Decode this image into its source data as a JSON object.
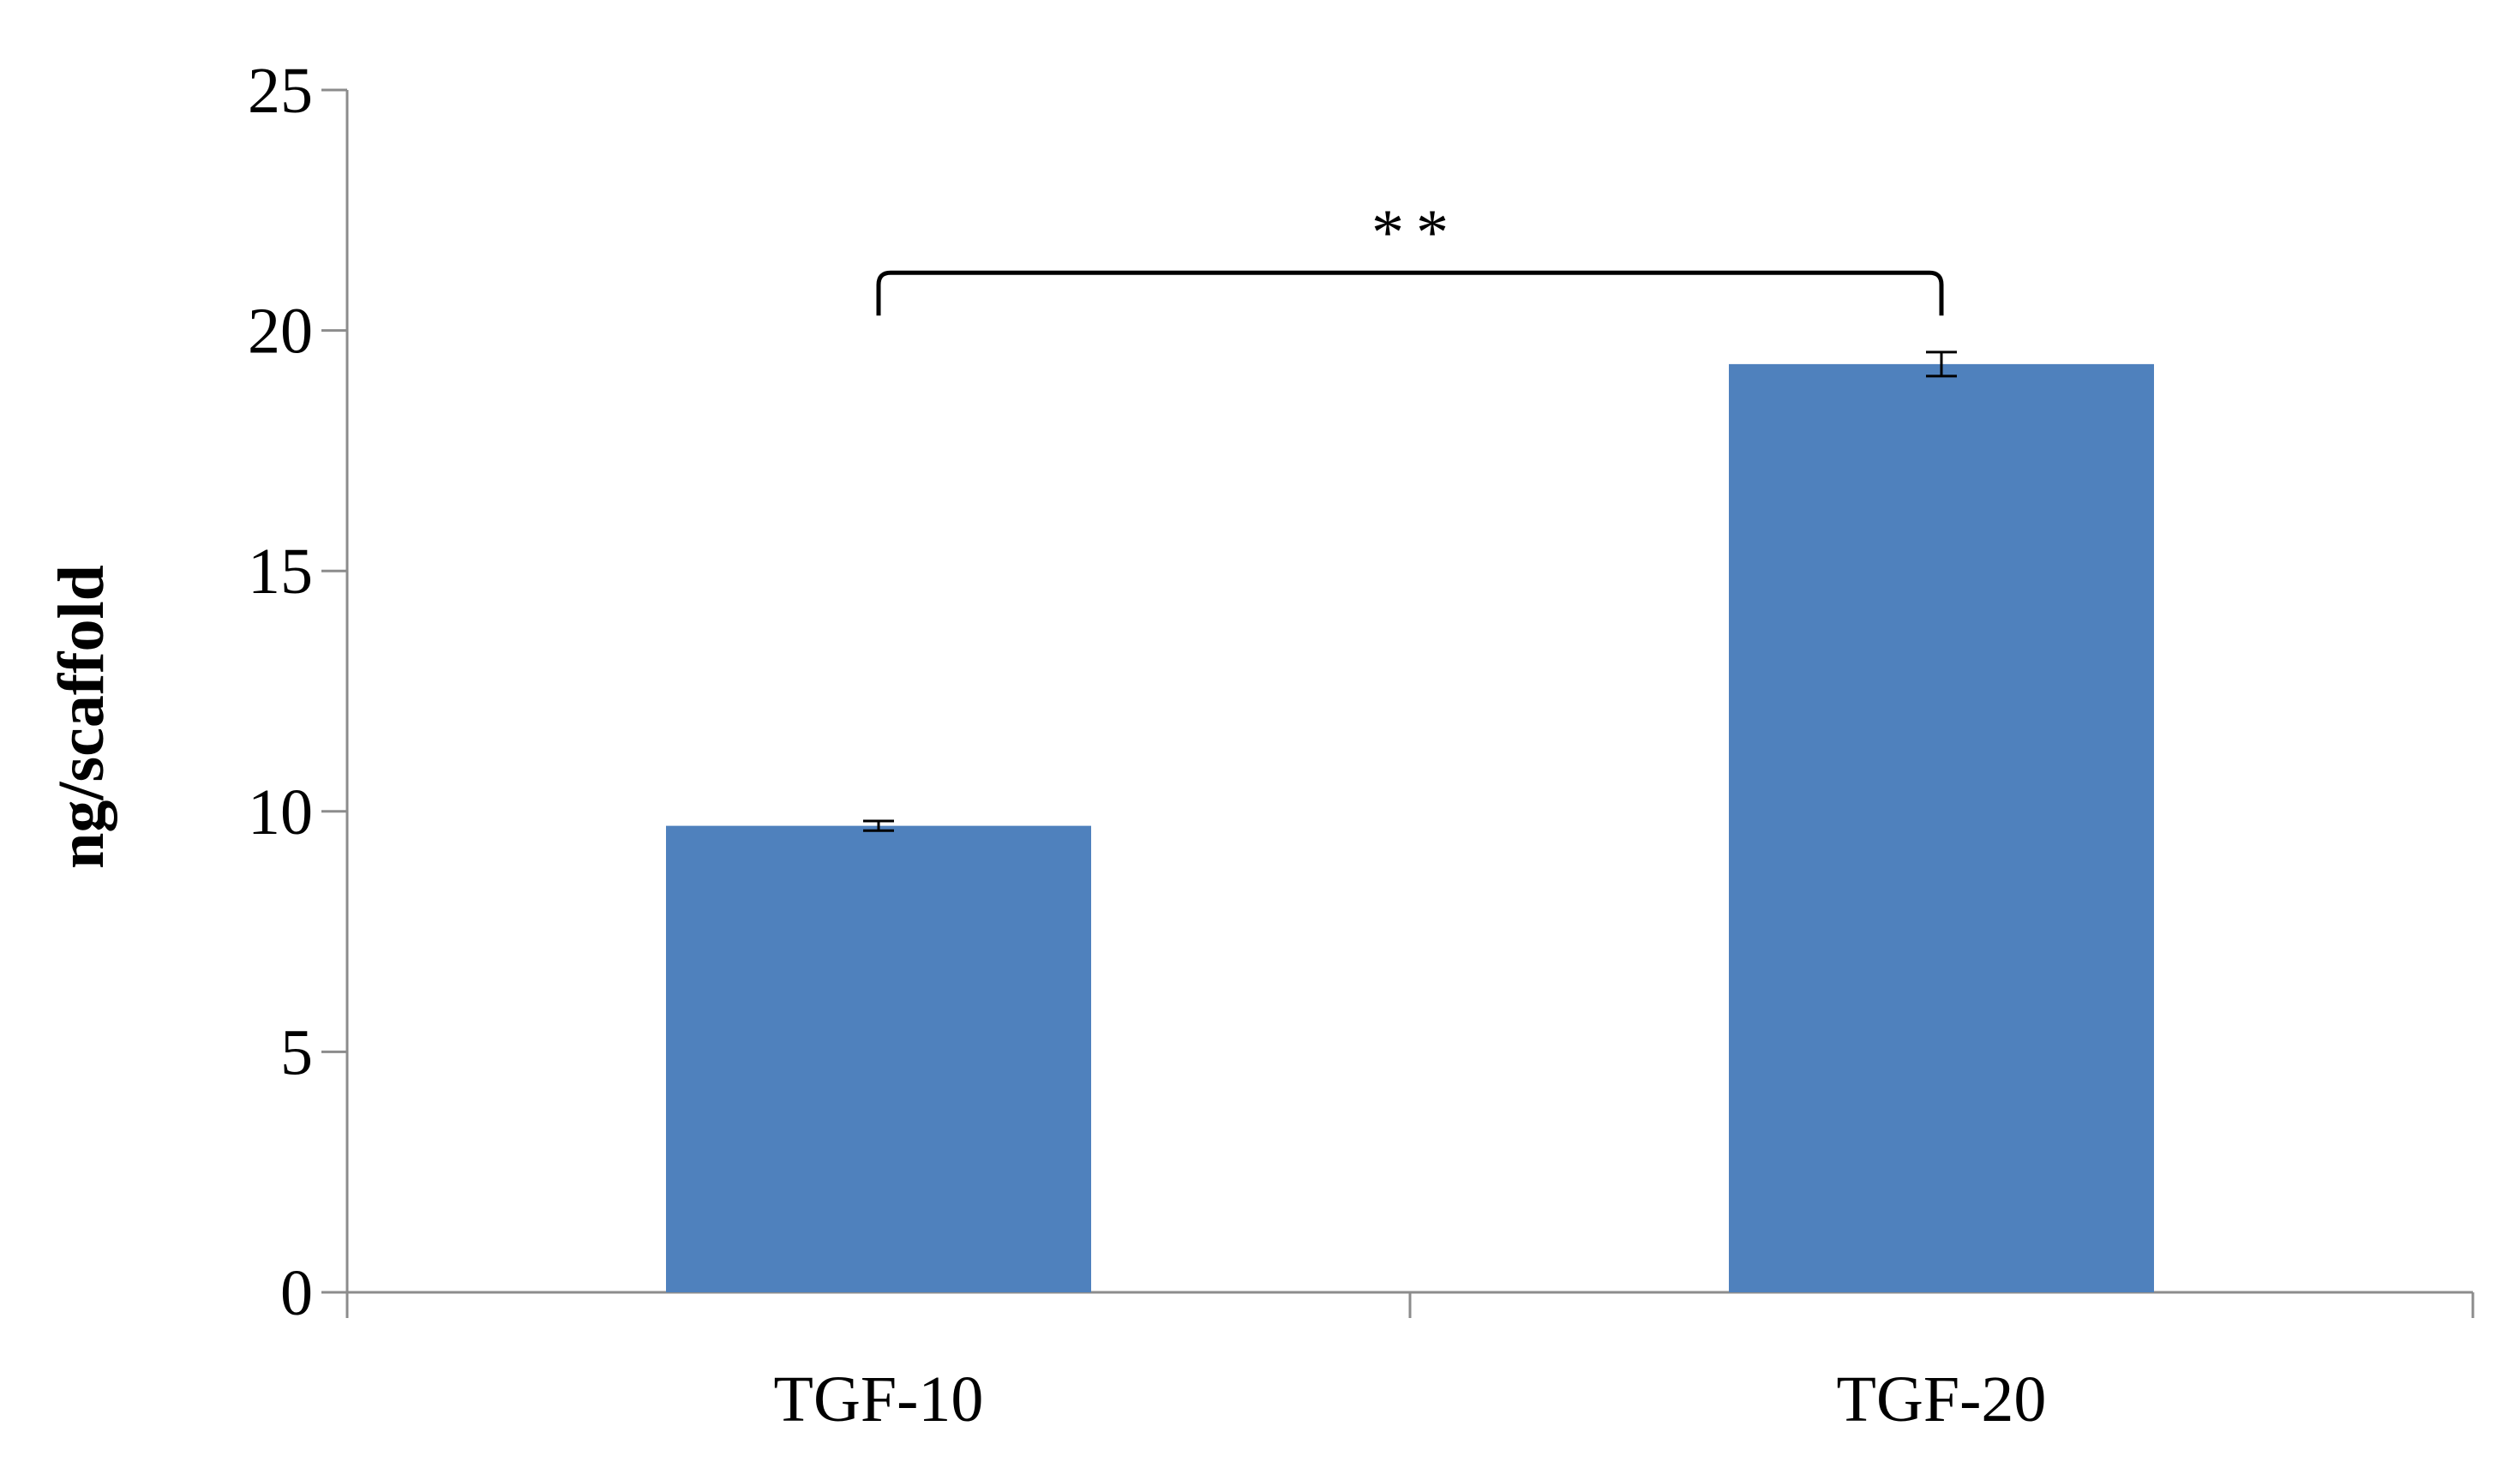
{
  "chart_data": {
    "type": "bar",
    "title": "",
    "xlabel": "",
    "ylabel": "ng/scaffold",
    "categories": [
      "TGF-10",
      "TGF-20"
    ],
    "values": [
      9.7,
      19.3
    ],
    "error": [
      0.1,
      0.25
    ],
    "ylim": [
      0,
      25
    ],
    "yticks": [
      0,
      5,
      10,
      15,
      20,
      25
    ],
    "ytick_labels": [
      "0",
      "5",
      "10",
      "15",
      "20",
      "25"
    ],
    "grid": false,
    "legend": "none",
    "bar_color": "#4F81BD",
    "annotations": [
      {
        "type": "significance_bracket",
        "from": "TGF-10",
        "to": "TGF-20",
        "label": "**"
      }
    ]
  }
}
